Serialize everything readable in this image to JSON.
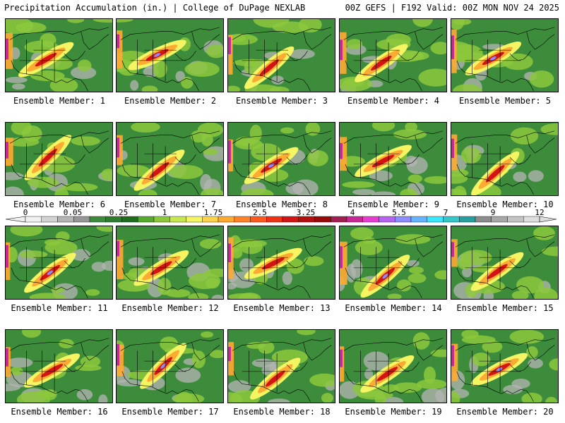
{
  "header": {
    "left": "Precipitation Accumulation (in.) | College of DuPage NEXLAB",
    "right": "00Z GEFS | F192 Valid: 00Z MON NOV 24 2025"
  },
  "panels": [
    {
      "label": "Ensemble Member: 1"
    },
    {
      "label": "Ensemble Member: 2"
    },
    {
      "label": "Ensemble Member: 3"
    },
    {
      "label": "Ensemble Member: 4"
    },
    {
      "label": "Ensemble Member: 5"
    },
    {
      "label": "Ensemble Member: 6"
    },
    {
      "label": "Ensemble Member: 7"
    },
    {
      "label": "Ensemble Member: 8"
    },
    {
      "label": "Ensemble Member: 9"
    },
    {
      "label": "Ensemble Member: 10"
    },
    {
      "label": "Ensemble Member: 11"
    },
    {
      "label": "Ensemble Member: 12"
    },
    {
      "label": "Ensemble Member: 13"
    },
    {
      "label": "Ensemble Member: 14"
    },
    {
      "label": "Ensemble Member: 15"
    },
    {
      "label": "Ensemble Member: 16"
    },
    {
      "label": "Ensemble Member: 17"
    },
    {
      "label": "Ensemble Member: 18"
    },
    {
      "label": "Ensemble Member: 19"
    },
    {
      "label": "Ensemble Member: 20"
    }
  ],
  "legend": {
    "tick_labels": [
      "0",
      "0.05",
      "0.25",
      "1",
      "1.75",
      "2.5",
      "3.25",
      "4",
      "5.5",
      "7",
      "9",
      "12"
    ],
    "colors": [
      "#f0f0f0",
      "#d2d2d2",
      "#b4b4b4",
      "#969696",
      "#3c8c3c",
      "#2d7d2d",
      "#1e6e1e",
      "#55aa2d",
      "#8cc83c",
      "#c8e650",
      "#f5f564",
      "#ffd24b",
      "#ffaa32",
      "#ff8228",
      "#ff5a1e",
      "#f03214",
      "#d21414",
      "#b40f0f",
      "#960a0a",
      "#a01e50",
      "#c82896",
      "#e63cd2",
      "#b464f0",
      "#8c8cff",
      "#64b4ff",
      "#3ce6ff",
      "#32c8c8",
      "#28a0a0",
      "#8c8c8c",
      "#a8a8a8",
      "#c4c4c4",
      "#dedede"
    ]
  }
}
